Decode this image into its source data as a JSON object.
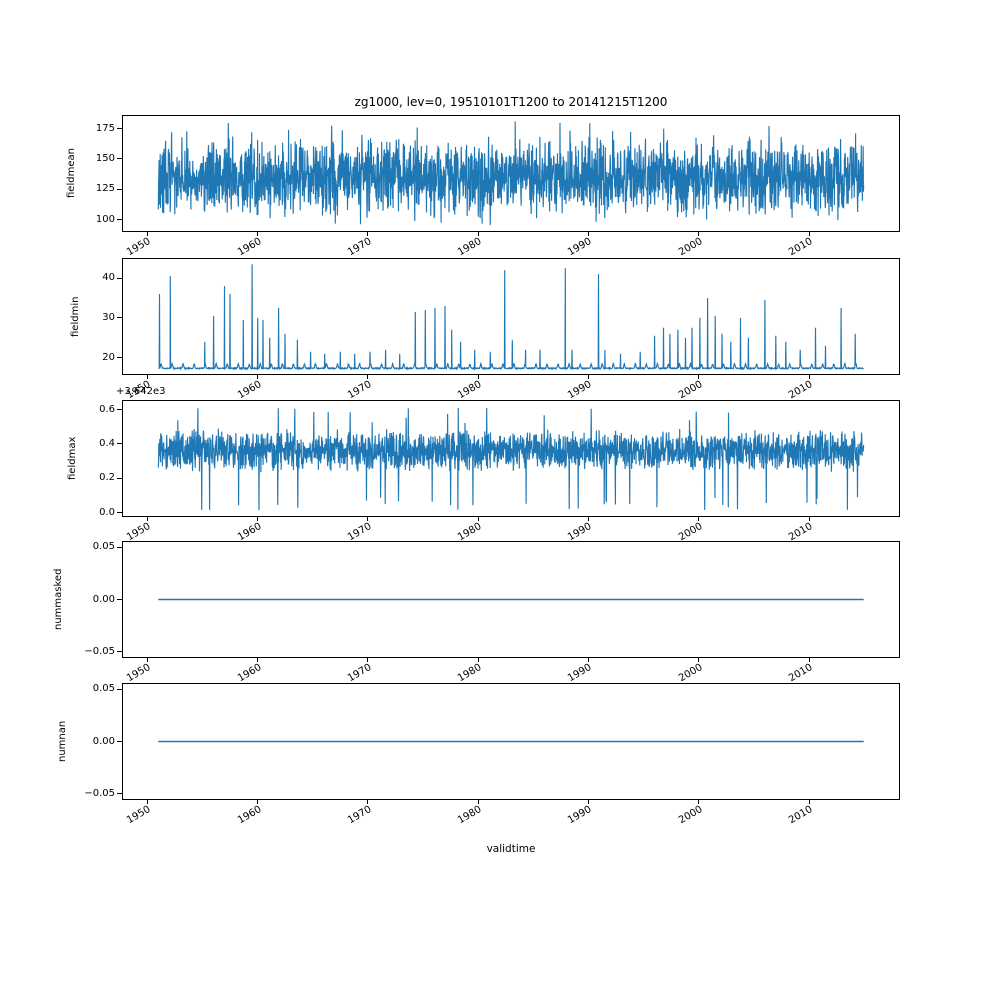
{
  "figure": {
    "title": "zg1000, lev=0, 19510101T1200 to 20141215T1200",
    "xlabel": "validtime",
    "line_color": "#1f77b4",
    "background": "#ffffff",
    "x_axis": {
      "range": [
        1947.8,
        2018.16
      ],
      "tick_values": [
        1950,
        1960,
        1970,
        1980,
        1990,
        2000,
        2010
      ],
      "tick_labels": [
        "1950",
        "1960",
        "1970",
        "1980",
        "1990",
        "2000",
        "2010"
      ],
      "tick_label_rotation_deg": 30
    },
    "data_time_range": [
      1951.0,
      2014.96
    ]
  },
  "chart_data": [
    {
      "type": "line",
      "ylabel": "fieldmean",
      "ylim": [
        90.7,
        185.3
      ],
      "ytick_values": [
        100,
        125,
        150,
        175
      ],
      "ytick_labels": [
        "100",
        "125",
        "150",
        "175"
      ],
      "x_range": [
        1951.0,
        2014.96
      ],
      "series": {
        "kind": "noise",
        "n": 2600,
        "baseline": 135,
        "spread": 34,
        "low": [
          95,
          108,
          0.012
        ],
        "high": [
          166,
          181,
          0.012
        ],
        "description": "dense noisy daily/weekly field mean, band ~110-165, extremes ~95 and ~181"
      }
    },
    {
      "type": "line",
      "ylabel": "fieldmin",
      "ylim": [
        15.9,
        44.8
      ],
      "ytick_values": [
        20,
        30,
        40
      ],
      "ytick_labels": [
        "20",
        "30",
        "40"
      ],
      "x_range": [
        1951.0,
        2014.96
      ],
      "series": {
        "kind": "spiky",
        "n": 2400,
        "baseline": 17.2,
        "seasonal_amp": 1.1,
        "noise": 0.25,
        "description": "flat baseline ~17-18 with small annual bumps and isolated tall spikes",
        "spikes": [
          [
            1951.1,
            36
          ],
          [
            1952.1,
            40.5
          ],
          [
            1955.2,
            24
          ],
          [
            1956.0,
            30.5
          ],
          [
            1957.0,
            38
          ],
          [
            1957.5,
            36
          ],
          [
            1958.7,
            29.5
          ],
          [
            1959.5,
            43.5
          ],
          [
            1960.0,
            30
          ],
          [
            1960.5,
            29.5
          ],
          [
            1961.1,
            25
          ],
          [
            1961.9,
            32.5
          ],
          [
            1962.5,
            26
          ],
          [
            1963.6,
            24.5
          ],
          [
            1964.8,
            21.5
          ],
          [
            1966.1,
            21
          ],
          [
            1967.5,
            21.5
          ],
          [
            1968.8,
            21
          ],
          [
            1970.2,
            21.5
          ],
          [
            1971.6,
            22
          ],
          [
            1972.9,
            21
          ],
          [
            1974.3,
            31.5
          ],
          [
            1975.2,
            32
          ],
          [
            1976.1,
            32.5
          ],
          [
            1977.0,
            33
          ],
          [
            1977.6,
            27
          ],
          [
            1978.4,
            24
          ],
          [
            1979.7,
            22
          ],
          [
            1981.1,
            21.5
          ],
          [
            1982.4,
            42
          ],
          [
            1983.1,
            24.5
          ],
          [
            1984.3,
            22
          ],
          [
            1985.6,
            22
          ],
          [
            1987.9,
            42.5
          ],
          [
            1988.5,
            22
          ],
          [
            1990.9,
            41
          ],
          [
            1991.5,
            22
          ],
          [
            1992.9,
            21
          ],
          [
            1994.7,
            21.5
          ],
          [
            1996.0,
            25.5
          ],
          [
            1996.8,
            27.5
          ],
          [
            1997.4,
            26
          ],
          [
            1998.1,
            27
          ],
          [
            1998.8,
            25
          ],
          [
            1999.4,
            27.5
          ],
          [
            2000.1,
            30
          ],
          [
            2000.8,
            35
          ],
          [
            2001.5,
            30.5
          ],
          [
            2002.1,
            26
          ],
          [
            2002.9,
            24
          ],
          [
            2003.8,
            30
          ],
          [
            2004.5,
            25
          ],
          [
            2006.0,
            34.5
          ],
          [
            2007.0,
            25.5
          ],
          [
            2007.9,
            24
          ],
          [
            2009.2,
            22
          ],
          [
            2010.6,
            27.5
          ],
          [
            2011.5,
            23
          ],
          [
            2012.9,
            32.5
          ],
          [
            2014.2,
            26
          ]
        ]
      }
    },
    {
      "type": "line",
      "ylabel": "fieldmax",
      "offset_text": "+3.642e3",
      "values_offset": 3642,
      "ylim": [
        -0.02,
        0.65
      ],
      "ytick_values": [
        0.0,
        0.2,
        0.4,
        0.6
      ],
      "ytick_labels": [
        "0.0",
        "0.2",
        "0.4",
        "0.6"
      ],
      "x_range": [
        1951.0,
        2014.96
      ],
      "series": {
        "kind": "noise",
        "n": 2600,
        "baseline": 0.36,
        "spread": 0.13,
        "low": [
          0.01,
          0.1,
          0.01
        ],
        "high": [
          0.52,
          0.62,
          0.01
        ],
        "description": "dense noisy field max around 3642.36, band ~3642.2-3642.5, extremes ~3642.0 and ~3642.62"
      }
    },
    {
      "type": "line",
      "ylabel": "nummasked",
      "ylim": [
        -0.055,
        0.055
      ],
      "ytick_values": [
        -0.05,
        0.0,
        0.05
      ],
      "ytick_labels": [
        "−0.05",
        "0.00",
        "0.05"
      ],
      "x_range": [
        1951.0,
        2014.96
      ],
      "series": {
        "kind": "constant",
        "value": 0.0,
        "description": "constant zero line"
      }
    },
    {
      "type": "line",
      "ylabel": "numnan",
      "ylim": [
        -0.055,
        0.055
      ],
      "ytick_values": [
        -0.05,
        0.0,
        0.05
      ],
      "ytick_labels": [
        "−0.05",
        "0.00",
        "0.05"
      ],
      "x_range": [
        1951.0,
        2014.96
      ],
      "series": {
        "kind": "constant",
        "value": 0.0,
        "description": "constant zero line"
      }
    }
  ]
}
